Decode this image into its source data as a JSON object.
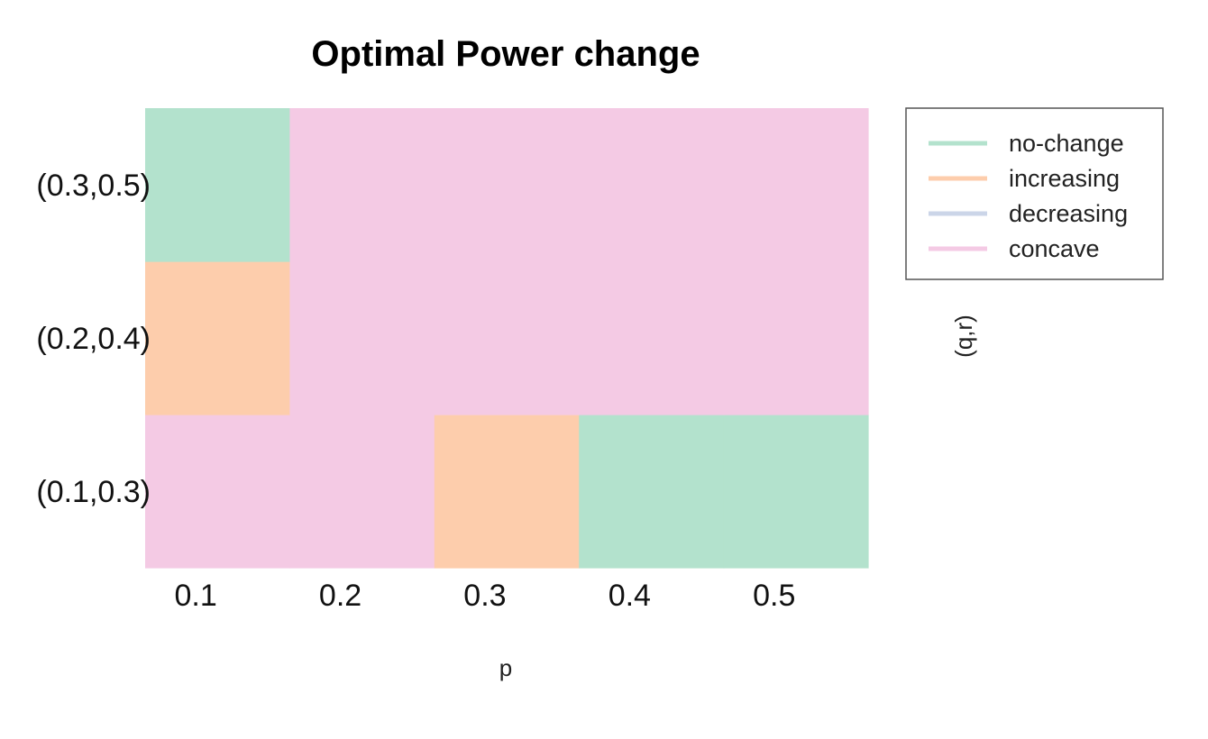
{
  "chart_data": {
    "type": "heatmap",
    "title": "Optimal Power change",
    "xlabel": "p",
    "ylabel": "(q,r)",
    "x": [
      "0.1",
      "0.2",
      "0.3",
      "0.4",
      "0.5"
    ],
    "y": [
      "(0.1,0.3)",
      "(0.2,0.4)",
      "(0.3,0.5)"
    ],
    "cells": [
      [
        "concave",
        "concave",
        "increasing",
        "no-change",
        "no-change"
      ],
      [
        "increasing",
        "concave",
        "concave",
        "concave",
        "concave"
      ],
      [
        "no-change",
        "concave",
        "concave",
        "concave",
        "concave"
      ]
    ],
    "legend": {
      "position": "right",
      "entries": [
        {
          "label": "no-change",
          "color": "#b3e2cd"
        },
        {
          "label": "increasing",
          "color": "#fdcdac"
        },
        {
          "label": "decreasing",
          "color": "#cbd5e8"
        },
        {
          "label": "concave",
          "color": "#f4cae4"
        }
      ]
    },
    "grid": false
  }
}
